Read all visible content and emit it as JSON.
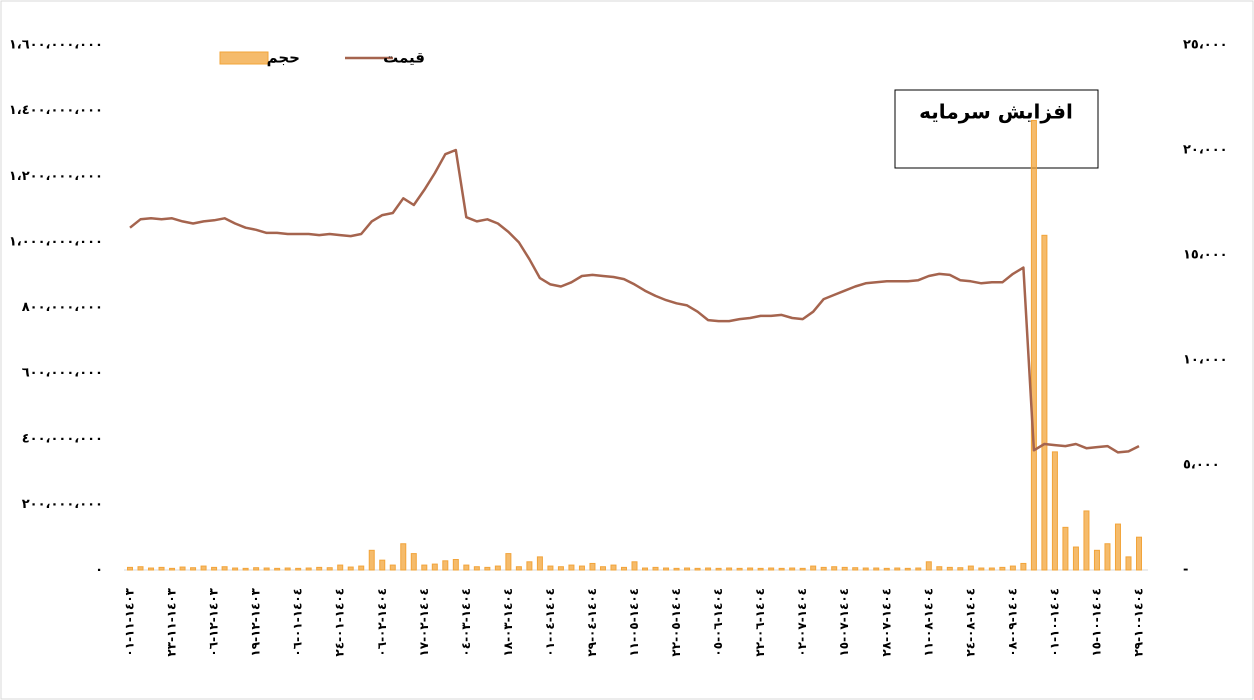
{
  "chart_data": {
    "type": "bar_line",
    "annotation": "افزایش سرمایه",
    "categories": [
      "١٤٠٣-١١-٠١",
      null,
      null,
      null,
      "١٤٠٣-١١-٢٣",
      null,
      null,
      null,
      "١٤٠٣-١٢-٠٦",
      null,
      null,
      null,
      "١٤٠٣-١٢-١٩",
      null,
      null,
      null,
      "١٤٠٤-٠١-٠٦",
      null,
      null,
      null,
      "١٤٠٤-٠١-٢٤",
      null,
      null,
      null,
      "١٤٠٤-٠٢-٠٦",
      null,
      null,
      null,
      "١٤٠٤-٠٢-١٧",
      null,
      null,
      null,
      "١٤٠٤-٠٣-٠٤",
      null,
      null,
      null,
      "١٤٠٤-٠٣-١٨",
      null,
      null,
      null,
      "١٤٠٤-٠٤-٠١",
      null,
      null,
      null,
      "١٤٠٤-٠٤-٢٩",
      null,
      null,
      null,
      "١٤٠٤-٠٥-١١",
      null,
      null,
      null,
      "١٤٠٤-٠٥-٢٢",
      null,
      null,
      null,
      "١٤٠٤-٠٦-٠٥",
      null,
      null,
      null,
      "١٤٠٤-٠٦-٢٢",
      null,
      null,
      null,
      "١٤٠٤-٠٧-٠٢",
      null,
      null,
      null,
      "١٤٠٤-٠٧-١٥",
      null,
      null,
      null,
      "١٤٠٤-٠٧-٢٨",
      null,
      null,
      null,
      "١٤٠٤-٠٨-١١",
      null,
      null,
      null,
      "١٤٠٤-٠٨-٢٤",
      null,
      null,
      null,
      "١٤٠٤-٠٩-٠٨",
      null,
      null,
      null,
      "١٤٠٤-١٠-٠١",
      null,
      null,
      null,
      "١٤٠٤-١٠-١٥",
      null,
      null,
      null,
      "١٤٠٤-١٠-٢٩"
    ],
    "series": [
      {
        "name": "حجم",
        "type": "bar",
        "color": "#f2a43a",
        "axis": "y",
        "values": [
          8000000,
          10000000,
          6000000,
          8000000,
          5000000,
          9000000,
          7000000,
          12000000,
          8000000,
          10000000,
          6000000,
          5000000,
          7000000,
          6000000,
          5000000,
          6000000,
          5000000,
          6000000,
          8000000,
          7000000,
          15000000,
          9000000,
          12000000,
          60000000,
          30000000,
          15000000,
          80000000,
          50000000,
          15000000,
          18000000,
          28000000,
          32000000,
          15000000,
          10000000,
          8000000,
          12000000,
          50000000,
          10000000,
          25000000,
          40000000,
          12000000,
          10000000,
          15000000,
          12000000,
          20000000,
          10000000,
          15000000,
          8000000,
          25000000,
          6000000,
          8000000,
          6000000,
          5000000,
          6000000,
          5000000,
          6000000,
          5000000,
          6000000,
          5000000,
          6000000,
          5000000,
          6000000,
          5000000,
          6000000,
          5000000,
          12000000,
          8000000,
          10000000,
          8000000,
          7000000,
          6000000,
          6000000,
          5000000,
          6000000,
          5000000,
          6000000,
          25000000,
          10000000,
          8000000,
          7000000,
          12000000,
          6000000,
          6000000,
          8000000,
          12000000,
          20000000,
          1370000000,
          1020000000,
          360000000,
          130000000,
          70000000,
          180000000,
          60000000,
          80000000,
          140000000,
          40000000,
          100000000
        ]
      },
      {
        "name": "قیمت",
        "type": "line",
        "color": "#a5644e",
        "axis": "y2",
        "values": [
          16300,
          16700,
          16750,
          16700,
          16750,
          16600,
          16500,
          16600,
          16650,
          16750,
          16500,
          16300,
          16200,
          16050,
          16050,
          16000,
          16000,
          16000,
          15950,
          16000,
          15950,
          15900,
          16000,
          16600,
          16900,
          17000,
          17700,
          17380,
          18100,
          18900,
          19800,
          20000,
          16800,
          16600,
          16700,
          16500,
          16100,
          15600,
          14800,
          13900,
          13600,
          13500,
          13700,
          14000,
          14050,
          14000,
          13950,
          13850,
          13600,
          13300,
          13050,
          12850,
          12700,
          12600,
          12300,
          11900,
          11850,
          11850,
          11950,
          12000,
          12100,
          12100,
          12150,
          12000,
          11950,
          12300,
          12900,
          13100,
          13300,
          13500,
          13650,
          13700,
          13750,
          13750,
          13750,
          13800,
          14000,
          14100,
          14050,
          13800,
          13750,
          13650,
          13700,
          13700,
          14100,
          14400,
          5700,
          6000,
          5950,
          5900,
          6000,
          5800,
          5850,
          5900,
          5600,
          5650,
          5900
        ]
      }
    ],
    "ylim": [
      0,
      1600000000
    ],
    "yticks": [
      {
        "value": 0,
        "label": "٠"
      },
      {
        "value": 200000000,
        "label": "٢٠٠،٠٠٠،٠٠٠"
      },
      {
        "value": 400000000,
        "label": "٤٠٠،٠٠٠،٠٠٠"
      },
      {
        "value": 600000000,
        "label": "٦٠٠،٠٠٠،٠٠٠"
      },
      {
        "value": 800000000,
        "label": "٨٠٠،٠٠٠،٠٠٠"
      },
      {
        "value": 1000000000,
        "label": "١،٠٠٠،٠٠٠،٠٠٠"
      },
      {
        "value": 1200000000,
        "label": "١،٢٠٠،٠٠٠،٠٠٠"
      },
      {
        "value": 1400000000,
        "label": "١،٤٠٠،٠٠٠،٠٠٠"
      },
      {
        "value": 1600000000,
        "label": "١،٦٠٠،٠٠٠،٠٠٠"
      }
    ],
    "y2lim": [
      0,
      25000
    ],
    "y2ticks": [
      {
        "value": 0,
        "label": "-"
      },
      {
        "value": 5000,
        "label": "٥،٠٠٠"
      },
      {
        "value": 10000,
        "label": "١٠،٠٠٠"
      },
      {
        "value": 15000,
        "label": "١٥،٠٠٠"
      },
      {
        "value": 20000,
        "label": "٢٠،٠٠٠"
      },
      {
        "value": 25000,
        "label": "٢٥،٠٠٠"
      }
    ],
    "grid": false
  }
}
